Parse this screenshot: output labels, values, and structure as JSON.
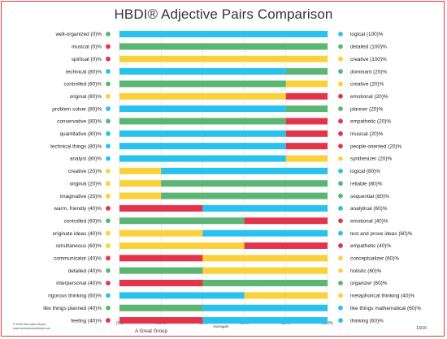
{
  "title": "HBDI® Adjective Pairs Comparison",
  "footer": {
    "copyright_line1": "© 2016 Herrmann Global",
    "copyright_line2": "www.herrmannsolutions.com",
    "group_name": "A Great Group",
    "axis_caption": "Averages",
    "page_number": "13/16"
  },
  "colors": {
    "blue": "#29c2ee",
    "green": "#5bb673",
    "red": "#e3344b",
    "yellow": "#fbd13a",
    "frame": "#e23b3b"
  },
  "chart_data": {
    "type": "bar",
    "orientation": "horizontal-stacked-100",
    "xlim": [
      0,
      100
    ],
    "x_ticks": [
      "0%",
      "20%",
      "40%",
      "60%",
      "80%",
      "100%"
    ],
    "grid": true,
    "rows": [
      {
        "left": "well-organized (0)%",
        "left_color": "green",
        "right": "logical (100)%",
        "right_color": "blue",
        "left_value": 0,
        "right_value": 100
      },
      {
        "left": "musical (0)%",
        "left_color": "red",
        "right": "detailed (100)%",
        "right_color": "green",
        "left_value": 0,
        "right_value": 100
      },
      {
        "left": "spiritual (0)%",
        "left_color": "red",
        "right": "creative (100)%",
        "right_color": "yellow",
        "left_value": 0,
        "right_value": 100
      },
      {
        "left": "technical (80)%",
        "left_color": "blue",
        "right": "dominant (20)%",
        "right_color": "green",
        "left_value": 80,
        "right_value": 20
      },
      {
        "left": "controlled (80)%",
        "left_color": "green",
        "right": "creative (20)%",
        "right_color": "yellow",
        "left_value": 80,
        "right_value": 20
      },
      {
        "left": "original (80)%",
        "left_color": "yellow",
        "right": "emotional (20)%",
        "right_color": "red",
        "left_value": 80,
        "right_value": 20
      },
      {
        "left": "problem solver (80)%",
        "left_color": "blue",
        "right": "planner (20)%",
        "right_color": "green",
        "left_value": 80,
        "right_value": 20
      },
      {
        "left": "conservative (80)%",
        "left_color": "green",
        "right": "empathetic (20)%",
        "right_color": "red",
        "left_value": 80,
        "right_value": 20
      },
      {
        "left": "quantitative (80)%",
        "left_color": "blue",
        "right": "musical (20)%",
        "right_color": "red",
        "left_value": 80,
        "right_value": 20
      },
      {
        "left": "technical things (80)%",
        "left_color": "blue",
        "right": "people-oriented (20)%",
        "right_color": "red",
        "left_value": 80,
        "right_value": 20
      },
      {
        "left": "analyst (80)%",
        "left_color": "blue",
        "right": "synthesizer (20)%",
        "right_color": "yellow",
        "left_value": 80,
        "right_value": 20
      },
      {
        "left": "creative (20)%",
        "left_color": "yellow",
        "right": "logical (80)%",
        "right_color": "blue",
        "left_value": 20,
        "right_value": 80
      },
      {
        "left": "original (20)%",
        "left_color": "yellow",
        "right": "reliable (80)%",
        "right_color": "green",
        "left_value": 20,
        "right_value": 80
      },
      {
        "left": "imaginative (20)%",
        "left_color": "yellow",
        "right": "sequential (80)%",
        "right_color": "green",
        "left_value": 20,
        "right_value": 80
      },
      {
        "left": "warm, friendly (40)%",
        "left_color": "red",
        "right": "analytical (60)%",
        "right_color": "blue",
        "left_value": 40,
        "right_value": 60
      },
      {
        "left": "controlled (60)%",
        "left_color": "green",
        "right": "emotional (40)%",
        "right_color": "red",
        "left_value": 60,
        "right_value": 40
      },
      {
        "left": "originate ideas (40)%",
        "left_color": "yellow",
        "right": "test and prove ideas (60)%",
        "right_color": "blue",
        "left_value": 40,
        "right_value": 60
      },
      {
        "left": "simultaneous (60)%",
        "left_color": "yellow",
        "right": "empathetic (40)%",
        "right_color": "red",
        "left_value": 60,
        "right_value": 40
      },
      {
        "left": "communicator (40)%",
        "left_color": "red",
        "right": "conceptualizer (60)%",
        "right_color": "yellow",
        "left_value": 40,
        "right_value": 60
      },
      {
        "left": "detailed (40)%",
        "left_color": "green",
        "right": "holistic (60)%",
        "right_color": "yellow",
        "left_value": 40,
        "right_value": 60
      },
      {
        "left": "interpersonal (40)%",
        "left_color": "red",
        "right": "organizer (60)%",
        "right_color": "green",
        "left_value": 40,
        "right_value": 60
      },
      {
        "left": "rigorous thinking (60)%",
        "left_color": "blue",
        "right": "metaphorical thinking (40)%",
        "right_color": "yellow",
        "left_value": 60,
        "right_value": 40
      },
      {
        "left": "like things planned (40)%",
        "left_color": "green",
        "right": "like things mathematical (60)%",
        "right_color": "blue",
        "left_value": 40,
        "right_value": 60
      },
      {
        "left": "feeling (40)%",
        "left_color": "red",
        "right": "thinking (60)%",
        "right_color": "blue",
        "left_value": 40,
        "right_value": 60
      }
    ]
  }
}
